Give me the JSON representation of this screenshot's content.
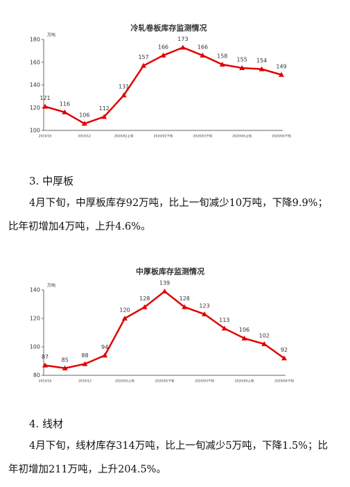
{
  "chart_data": [
    {
      "type": "line",
      "title": "冷轧卷板库存监测情况",
      "y_unit": "万吨",
      "categories": [
        "2019/10",
        null,
        "2019/12",
        null,
        "2020/02上旬",
        null,
        "2020/02下旬",
        null,
        "2020/03下旬",
        null,
        "2020/04上旬",
        null,
        "2020/04下旬"
      ],
      "values": [
        121,
        116,
        106,
        112,
        131,
        157,
        166,
        173,
        166,
        158,
        155,
        154,
        149
      ],
      "color": "#e00000",
      "ylim": [
        100,
        180
      ],
      "yticks": [
        100,
        120,
        140,
        160,
        180
      ]
    },
    {
      "type": "line",
      "title": "中厚板库存监测情况",
      "y_unit": "万吨",
      "categories": [
        "2019/10",
        null,
        "2019/12",
        null,
        "2020/02上旬",
        null,
        "2020/02下旬",
        null,
        "2020/03下旬",
        null,
        "2020/04上旬",
        null,
        "2020/04下旬"
      ],
      "values": [
        87,
        85,
        88,
        94,
        120,
        128,
        139,
        128,
        123,
        113,
        106,
        102,
        92
      ],
      "color": "#e00000",
      "ylim": [
        80,
        140
      ],
      "yticks": [
        80,
        100,
        120,
        140
      ]
    }
  ],
  "sections": [
    {
      "heading": "3. 中厚板",
      "body": "4月下旬，中厚板库存92万吨，比上一旬减少10万吨，下降9.9%；比年初增加4万吨，上升4.6%。"
    },
    {
      "heading": "4. 线材",
      "body": "4月下旬，线材库存314万吨，比上一旬减少5万吨，下降1.5%；比年初增加211万吨，上升204.5%。"
    }
  ]
}
